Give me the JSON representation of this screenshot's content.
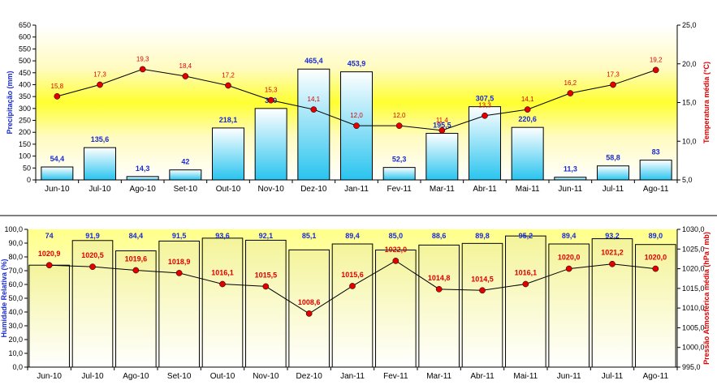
{
  "colors": {
    "top_bar_gradient_top": "#ffffff",
    "top_bar_gradient_bottom": "#29c4ef",
    "top_background_yellow": "#ffff33",
    "bottom_bar_gradient_top": "#f6f6a0",
    "bottom_bar_gradient_bottom": "#ffffff",
    "bottom_background_top": "#ffff88",
    "line_marker": "#e00000",
    "line": "#000000",
    "left_axis_title": "#1a2bd0",
    "right_axis_title": "#e00000",
    "divider": "#000000"
  },
  "chart_data": [
    {
      "type": "bar+line",
      "categories": [
        "Jun-10",
        "Jul-10",
        "Ago-10",
        "Set-10",
        "Out-10",
        "Nov-10",
        "Dez-10",
        "Jan-11",
        "Fev-11",
        "Mar-11",
        "Abr-11",
        "Mai-11",
        "Jun-11",
        "Jul-11",
        "Ago-11"
      ],
      "series": [
        {
          "name": "Precipitação (mm)",
          "kind": "bar",
          "axis": "left",
          "values": [
            54.4,
            135.6,
            14.3,
            42,
            218.1,
            300,
            465.4,
            453.9,
            52.3,
            195.5,
            307.5,
            220.6,
            11.3,
            58.8,
            83
          ],
          "labels": [
            "54,4",
            "135,6",
            "14,3",
            "42",
            "218,1",
            "300",
            "465,4",
            "453,9",
            "52,3",
            "195,5",
            "307,5",
            "220,6",
            "11,3",
            "58,8",
            "83"
          ]
        },
        {
          "name": "Temperatura média (°C)",
          "kind": "line",
          "axis": "right",
          "values": [
            15.8,
            17.3,
            19.3,
            18.4,
            17.2,
            15.3,
            14.1,
            12.0,
            12.0,
            11.4,
            13.3,
            14.1,
            16.2,
            17.3,
            19.2
          ],
          "labels": [
            "15,8",
            "17,3",
            "19,3",
            "18,4",
            "17,2",
            "15,3",
            "14,1",
            "12,0",
            "12,0",
            "11,4",
            "13,3",
            "14,1",
            "16,2",
            "17,3",
            "19,2"
          ]
        }
      ],
      "ylabel": "Precipitação (mm)",
      "y2label": "Temperatura média (°C)",
      "ylim": [
        0,
        650
      ],
      "y2lim": [
        5.0,
        25.0
      ],
      "yticks": [
        "0",
        "50",
        "100",
        "150",
        "200",
        "250",
        "300",
        "350",
        "400",
        "450",
        "500",
        "550",
        "600",
        "650"
      ],
      "y2ticks": [
        "5,0",
        "10,0",
        "15,0",
        "20,0",
        "25,0"
      ]
    },
    {
      "type": "bar+line",
      "categories": [
        "Jun-10",
        "Jul-10",
        "Ago-10",
        "Set-10",
        "Out-10",
        "Nov-10",
        "Dez-10",
        "Jan-11",
        "Fev-11",
        "Mar-11",
        "Abr-11",
        "Mai-11",
        "Jun-11",
        "Jul-11",
        "Ago-11"
      ],
      "series": [
        {
          "name": "Humidade Relativa (%)",
          "kind": "bar",
          "axis": "left",
          "values": [
            74,
            91.9,
            84.4,
            91.5,
            93.6,
            92.1,
            85.1,
            89.4,
            85.0,
            88.6,
            89.8,
            95.2,
            89.4,
            93.2,
            89.0
          ],
          "labels": [
            "74",
            "91,9",
            "84,4",
            "91,5",
            "93,6",
            "92,1",
            "85,1",
            "89,4",
            "85,0",
            "88,6",
            "89,8",
            "95,2",
            "89,4",
            "93,2",
            "89,0"
          ]
        },
        {
          "name": "Pressão Atmosférica média (hPa / mb)",
          "kind": "line",
          "axis": "right",
          "values": [
            1020.9,
            1020.5,
            1019.6,
            1018.9,
            1016.1,
            1015.5,
            1008.6,
            1015.6,
            1022.0,
            1014.8,
            1014.5,
            1016.1,
            1020.0,
            1021.2,
            1020.0
          ],
          "labels": [
            "1020,9",
            "1020,5",
            "1019,6",
            "1018,9",
            "1016,1",
            "1015,5",
            "1008,6",
            "1015,6",
            "1022,0",
            "1014,8",
            "1014,5",
            "1016,1",
            "1020,0",
            "1021,2",
            "1020,0"
          ]
        }
      ],
      "ylabel": "Humidade Relativa (%)",
      "y2label": "Pressão Atmosférica média (hPa / mb)",
      "ylim": [
        0,
        100
      ],
      "y2lim": [
        995.0,
        1030.0
      ],
      "yticks": [
        "0,0",
        "10,0",
        "20,0",
        "30,0",
        "40,0",
        "50,0",
        "60,0",
        "70,0",
        "80,0",
        "90,0",
        "100,0"
      ],
      "y2ticks": [
        "995,0",
        "1000,0",
        "1005,0",
        "1010,0",
        "1015,0",
        "1020,0",
        "1025,0",
        "1030,0"
      ]
    }
  ]
}
